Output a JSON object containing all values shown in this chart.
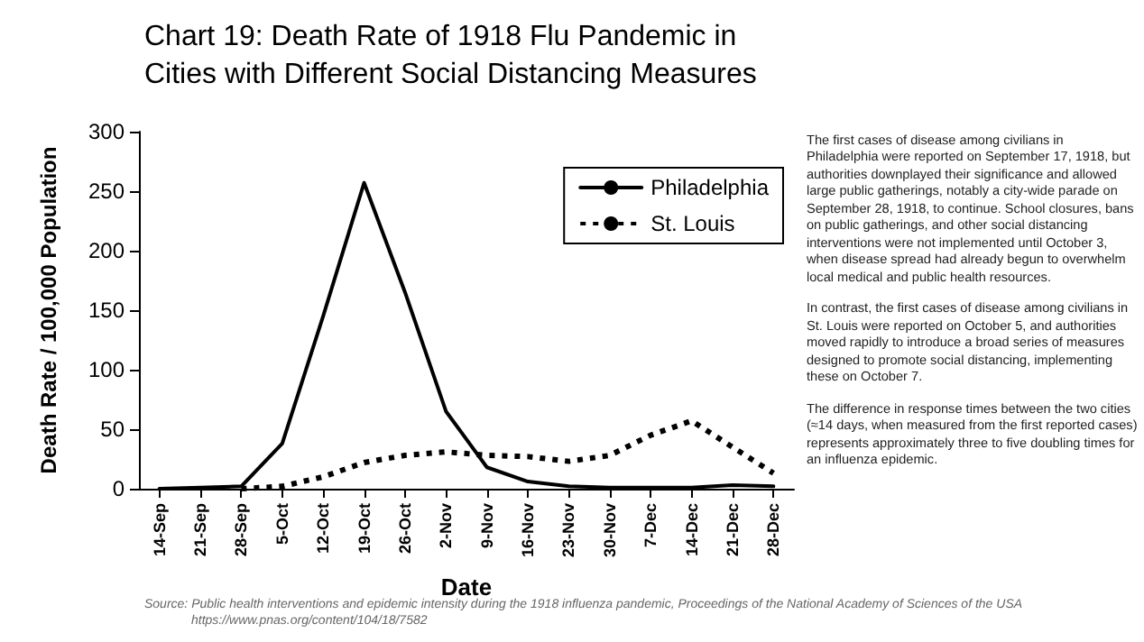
{
  "chart_data": {
    "type": "line",
    "title": "Chart 19: Death Rate of 1918 Flu Pandemic in Cities with Different Social Distancing Measures",
    "xlabel": "Date",
    "ylabel": "Death Rate / 100,000 Population",
    "categories": [
      "14-Sep",
      "21-Sep",
      "28-Sep",
      "5-Oct",
      "12-Oct",
      "19-Oct",
      "26-Oct",
      "2-Nov",
      "9-Nov",
      "16-Nov",
      "23-Nov",
      "30-Nov",
      "7-Dec",
      "14-Dec",
      "21-Dec",
      "28-Dec"
    ],
    "series": [
      {
        "name": "Philadelphia",
        "color": "#000000",
        "line_style": "solid",
        "values": [
          0,
          1,
          2,
          38,
          145,
          257,
          165,
          65,
          18,
          6,
          2,
          1,
          1,
          1,
          3,
          2
        ]
      },
      {
        "name": "St. Louis",
        "color": "#000000",
        "line_style": "dotted",
        "values": [
          null,
          null,
          0,
          2,
          10,
          22,
          28,
          31,
          28,
          27,
          23,
          28,
          45,
          57,
          35,
          13
        ]
      }
    ],
    "ylim": [
      0,
      300
    ],
    "yticks": [
      0,
      50,
      100,
      150,
      200,
      250,
      300
    ],
    "legend": "top right",
    "annotations": [
      "The first cases of disease among civilians in Philadelphia were reported on September 17, 1918, but authorities downplayed their significance and allowed large public gatherings, notably a city-wide parade on September 28, 1918, to continue. School closures, bans on public gatherings, and other social distancing interventions were not implemented until October 3, when disease spread had already begun to overwhelm local medical and public health resources.",
      "In contrast, the first cases of disease among civilians in St. Louis were reported on October 5, and authorities moved rapidly to introduce a broad series of measures designed to promote social distancing, implementing these on October 7.",
      "The difference in response times between the two cities (≈14 days, when measured from the first reported cases) represents approximately three to five doubling times for an influenza epidemic.",
      "Source: Public health interventions and epidemic intensity during the 1918 influenza pandemic, Proceedings of the National Academy of Sciences of the USA",
      "https://www.pnas.org/content/104/18/7582"
    ]
  }
}
